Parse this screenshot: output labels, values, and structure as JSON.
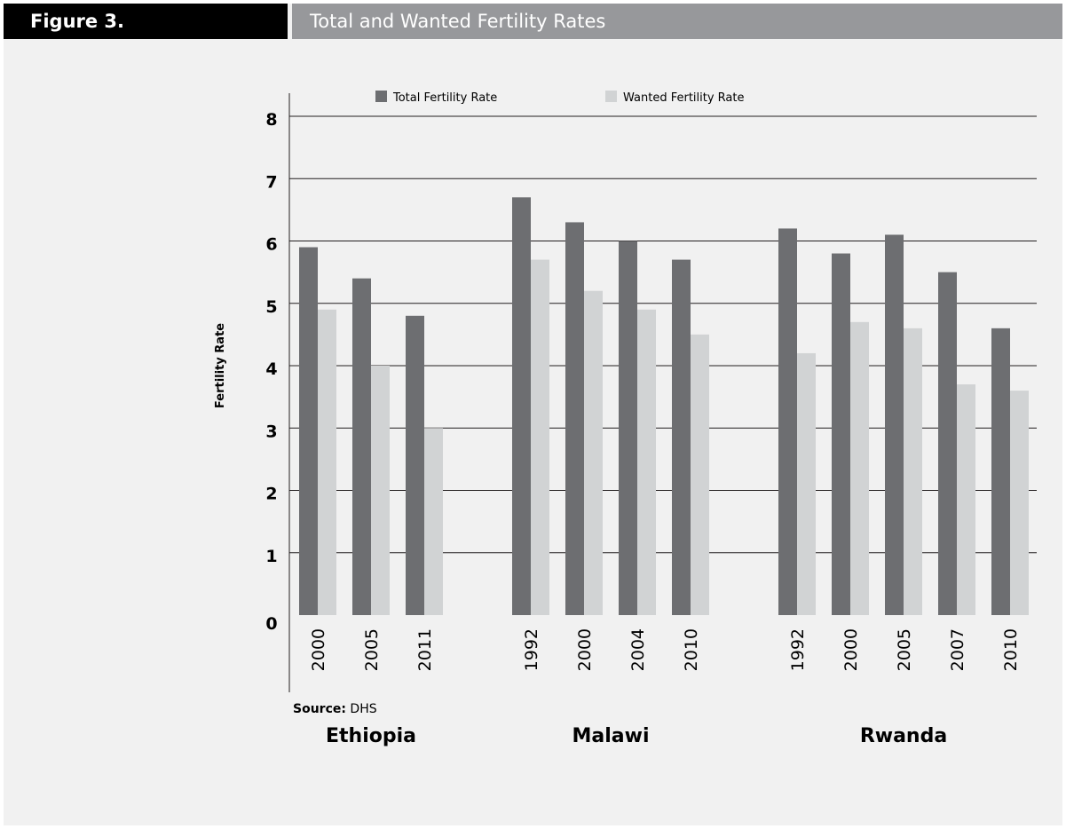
{
  "figure": {
    "label": "Figure 3.",
    "title": "Total and Wanted Fertility Rates"
  },
  "source": {
    "label": "Source:",
    "value": "DHS"
  },
  "chart_data": {
    "type": "bar",
    "ylabel": "Fertility Rate",
    "ylim": [
      0,
      8
    ],
    "yticks": [
      0,
      1,
      2,
      3,
      4,
      5,
      6,
      7,
      8
    ],
    "grid": true,
    "legend_position": "top",
    "groups": [
      {
        "name": "Ethiopia",
        "categories": [
          "2000",
          "2005",
          "2011"
        ]
      },
      {
        "name": "Malawi",
        "categories": [
          "1992",
          "2000",
          "2004",
          "2010"
        ]
      },
      {
        "name": "Rwanda",
        "categories": [
          "1992",
          "2000",
          "2005",
          "2007",
          "2010"
        ]
      }
    ],
    "series": [
      {
        "name": "Total Fertility Rate",
        "color": "#6d6e71",
        "values": [
          5.9,
          5.4,
          4.8,
          6.7,
          6.3,
          6.0,
          5.7,
          6.2,
          5.8,
          6.1,
          5.5,
          4.6
        ]
      },
      {
        "name": "Wanted Fertility Rate",
        "color": "#d1d3d4",
        "values": [
          4.9,
          4.0,
          3.0,
          5.7,
          5.2,
          4.9,
          4.5,
          4.2,
          4.7,
          4.6,
          3.7,
          3.6
        ]
      }
    ]
  }
}
